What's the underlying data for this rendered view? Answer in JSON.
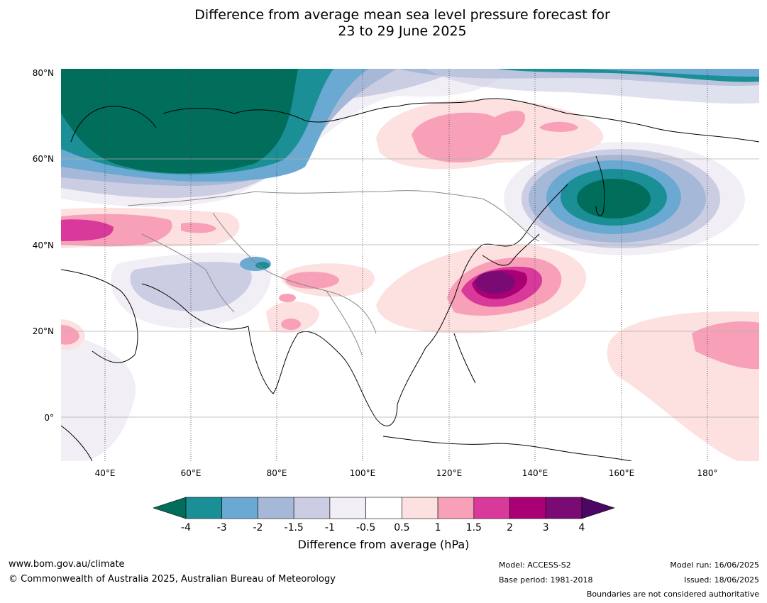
{
  "title": {
    "line1": "Difference from average mean sea level pressure forecast for",
    "line2": "23 to 29 June 2025"
  },
  "map": {
    "lat_labels": [
      "80°N",
      "60°N",
      "40°N",
      "20°N",
      "0°"
    ],
    "lon_labels": [
      "40°E",
      "60°E",
      "80°E",
      "100°E",
      "120°E",
      "140°E",
      "160°E",
      "180°"
    ]
  },
  "colorbar": {
    "label": "Difference from average (hPa)",
    "ticks": [
      "-4",
      "-3",
      "-2",
      "-1.5",
      "-1",
      "-0.5",
      "0.5",
      "1",
      "1.5",
      "2",
      "3",
      "4"
    ],
    "colors": [
      "#1b8f96",
      "#6aa9d1",
      "#a6b8d8",
      "#cbcde3",
      "#f2eef6",
      "#ffffff",
      "#fde0e0",
      "#f8a0b8",
      "#d8399a",
      "#aa0076",
      "#7b0b74"
    ],
    "under_color": "#006e5a",
    "over_color": "#4b0763"
  },
  "footer": {
    "website": "www.bom.gov.au/climate",
    "copyright": "© Commonwealth of Australia 2025, Australian Bureau of Meteorology",
    "model": "Model: ACCESS-S2",
    "base_period": "Base period: 1981-2018",
    "model_run": "Model run: 16/06/2025",
    "issued": "Issued: 18/06/2025",
    "disclaimer": "Boundaries are not considered authoritative"
  }
}
